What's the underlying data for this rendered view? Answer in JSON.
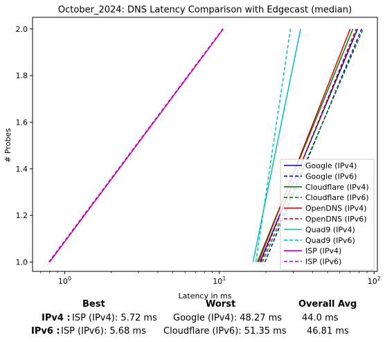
{
  "chart_data": {
    "type": "line",
    "title": "October_2024: DNS Latency Comparison with Edgecast (median)",
    "xlabel": "Latency in ms",
    "ylabel": "# Probes",
    "xscale": "log",
    "xlim": [
      0.62,
      105
    ],
    "ylim": [
      0.96,
      2.05
    ],
    "xticks": [
      {
        "value": 1,
        "base": "10",
        "exp": "0"
      },
      {
        "value": 10,
        "base": "10",
        "exp": "1"
      },
      {
        "value": 100,
        "base": "10",
        "exp": "2"
      }
    ],
    "yticks": [
      "1.0",
      "1.2",
      "1.4",
      "1.6",
      "1.8",
      "2.0"
    ],
    "legend_position": "lower-right",
    "series": [
      {
        "name": "Google (IPv4)",
        "color": "#0000cc",
        "dash": false,
        "x": [
          18.3,
          78.2
        ],
        "y": [
          1,
          2
        ]
      },
      {
        "name": "Google (IPv6)",
        "color": "#0000cc",
        "dash": true,
        "x": [
          19.7,
          83.0
        ],
        "y": [
          1,
          2
        ]
      },
      {
        "name": "Cloudflare (IPv4)",
        "color": "#008000",
        "dash": false,
        "x": [
          17.6,
          72.9
        ],
        "y": [
          1,
          2
        ]
      },
      {
        "name": "Cloudflare (IPv6)",
        "color": "#008000",
        "dash": true,
        "x": [
          19.0,
          85.0
        ],
        "y": [
          1,
          2
        ]
      },
      {
        "name": "OpenDNS (IPv4)",
        "color": "#cc0000",
        "dash": false,
        "x": [
          17.9,
          70.0
        ],
        "y": [
          1,
          2
        ]
      },
      {
        "name": "OpenDNS (IPv6)",
        "color": "#cc0000",
        "dash": true,
        "x": [
          18.6,
          76.5
        ],
        "y": [
          1,
          2
        ]
      },
      {
        "name": "Quad9 (IPv4)",
        "color": "#00bfbf",
        "dash": false,
        "x": [
          16.5,
          33.5
        ],
        "y": [
          1,
          2
        ]
      },
      {
        "name": "Quad9 (IPv6)",
        "color": "#00bfbf",
        "dash": true,
        "x": [
          17.2,
          28.8
        ],
        "y": [
          1,
          2
        ]
      },
      {
        "name": "ISP (IPv4)",
        "color": "#bf00bf",
        "dash": false,
        "x": [
          0.8,
          10.6
        ],
        "y": [
          1,
          2
        ]
      },
      {
        "name": "ISP (IPv6)",
        "color": "#bf00bf",
        "dash": true,
        "x": [
          0.79,
          10.5
        ],
        "y": [
          1,
          2
        ]
      }
    ]
  },
  "stats": {
    "headers": {
      "best": "Best",
      "worst": "Worst",
      "avg": "Overall Avg"
    },
    "rows": [
      {
        "label": "IPv4 :",
        "best": "ISP (IPv4): 5.72 ms",
        "worst": "Google (IPv4): 48.27 ms",
        "avg": "44.0 ms"
      },
      {
        "label": "IPv6 :",
        "best": "ISP (IPv6): 5.68 ms",
        "worst": "Cloudflare (IPv6): 51.35 ms",
        "avg": "46.81 ms"
      }
    ]
  }
}
